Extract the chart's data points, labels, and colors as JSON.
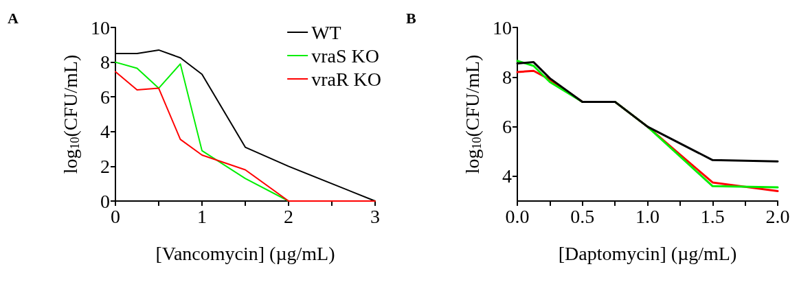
{
  "chart_data": [
    {
      "type": "line",
      "title": "A",
      "xlabel": "[Vancomycin] (µg/mL)",
      "ylabel": "log$_{10}$(CFU/mL)",
      "x": [
        0,
        0.25,
        0.5,
        0.75,
        1,
        1.5,
        2,
        3
      ],
      "series": [
        {
          "name": "WT",
          "color": "#000000",
          "values": [
            8.5,
            8.5,
            8.7,
            8.25,
            7.3,
            3.1,
            2.0,
            0
          ]
        },
        {
          "name": "vraS KO",
          "color": "#00ee00",
          "values": [
            8.0,
            7.65,
            6.5,
            7.9,
            2.9,
            1.3,
            0,
            0
          ]
        },
        {
          "name": "vraR KO",
          "color": "#ff0000",
          "values": [
            7.45,
            6.4,
            6.5,
            3.55,
            2.65,
            1.8,
            0,
            0
          ]
        }
      ],
      "xlim": [
        0,
        3
      ],
      "xticks": [
        0,
        {
          "value": 0.5,
          "label": null
        },
        1,
        {
          "value": 1.5,
          "label": null
        },
        2,
        {
          "value": 2.5,
          "label": null
        },
        3
      ],
      "ylim": [
        0,
        10
      ],
      "yticks": [
        0,
        2,
        4,
        6,
        8,
        10
      ],
      "legend": "top right",
      "grid": false,
      "marker": "none",
      "line_style": "solid"
    },
    {
      "type": "line",
      "title": "B",
      "xlabel": "[Daptomycin] (µg/mL)",
      "ylabel": "log$_{10}$(CFU/mL)",
      "x": [
        0,
        0.125,
        0.25,
        0.5,
        0.75,
        1,
        1.5,
        2
      ],
      "series": [
        {
          "color": "#ff0000",
          "values": [
            8.2,
            8.25,
            7.9,
            7.0,
            7.0,
            6.0,
            3.75,
            3.4
          ]
        },
        {
          "color": "#00ee00",
          "values": [
            8.65,
            8.45,
            7.8,
            7.0,
            7.0,
            6.0,
            3.6,
            3.55
          ]
        },
        {
          "color": "#000000",
          "values": [
            8.55,
            8.6,
            7.95,
            7.0,
            7.0,
            6.0,
            4.65,
            4.6
          ]
        }
      ],
      "xlim": [
        0,
        2
      ],
      "xticks": [
        {
          "value": 0,
          "label": "0.0"
        },
        {
          "value": 0.25,
          "label": null
        },
        {
          "value": 0.5,
          "label": "0.5"
        },
        {
          "value": 0.75,
          "label": null
        },
        {
          "value": 1,
          "label": "1.0"
        },
        {
          "value": 1.25,
          "label": null
        },
        {
          "value": 1.5,
          "label": "1.5"
        },
        {
          "value": 1.75,
          "label": null
        },
        {
          "value": 2,
          "label": "2.0"
        }
      ],
      "ylim": [
        3,
        10
      ],
      "yticks": [
        4,
        6,
        8,
        10
      ],
      "legend": false,
      "grid": false,
      "marker": "none",
      "line_style": "solid"
    }
  ]
}
